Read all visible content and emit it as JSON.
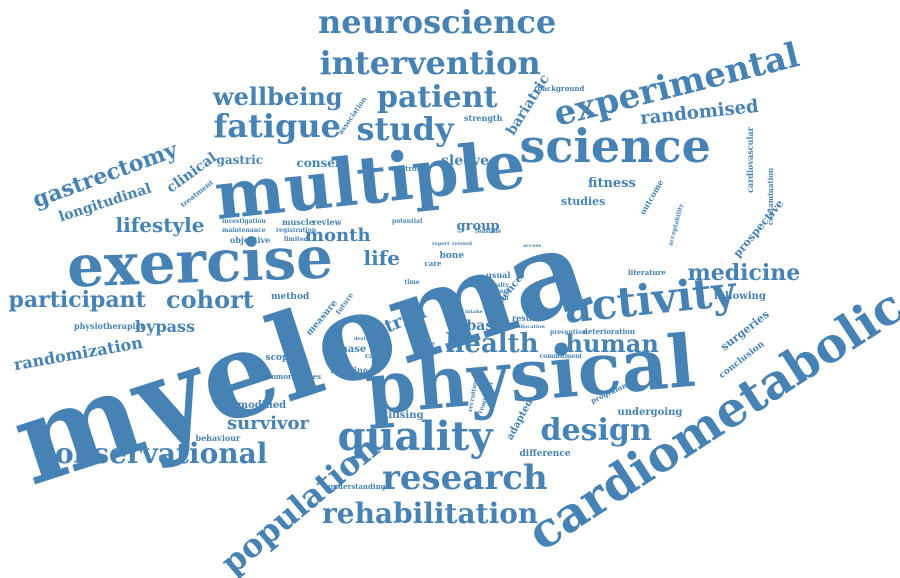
{
  "cloud": {
    "color": "#4682b4",
    "background": "#ffffff",
    "words": [
      "myeloma",
      "multiple",
      "physical",
      "cardiometabolic",
      "exercise",
      "science",
      "activity",
      "quality",
      "fatigue",
      "study",
      "neuroscience",
      "intervention",
      "experimental",
      "patient",
      "wellbeing",
      "research",
      "population",
      "rehabilitation",
      "design",
      "observational",
      "health",
      "human",
      "medicine",
      "cohort",
      "participant",
      "gastrectomy",
      "lifestyle",
      "month",
      "life",
      "randomised",
      "survivor",
      "trial",
      "randomization",
      "longitudinal",
      "clinical",
      "bypass",
      "basic",
      "sleeve",
      "gastric",
      "consent",
      "bariatric",
      "fitness",
      "studies",
      "group",
      "undergoing",
      "following",
      "surgeries",
      "prospective",
      "conclusion",
      "modified",
      "scoping",
      "behaviour",
      "phase",
      "baseline",
      "method",
      "physiotherapist",
      "utilising",
      "difference",
      "adapted",
      "understanding",
      "measure",
      "future",
      "result",
      "bone",
      "literature",
      "outcome",
      "cardiovascular",
      "contamination",
      "strength",
      "treatment",
      "review",
      "muscle",
      "association",
      "background",
      "programme",
      "deterioration",
      "commitment",
      "comorbidities",
      "evidence",
      "objective",
      "limited",
      "investigation",
      "maintenance",
      "registration",
      "potential",
      "controlled",
      "acceptability",
      "usual",
      "care",
      "obesity",
      "primary",
      "london",
      "cancer",
      "analysis",
      "recruitment",
      "remission",
      "prevention",
      "allocation",
      "intake",
      "destruction",
      "feasible",
      "related",
      "report",
      "time",
      "access"
    ]
  }
}
